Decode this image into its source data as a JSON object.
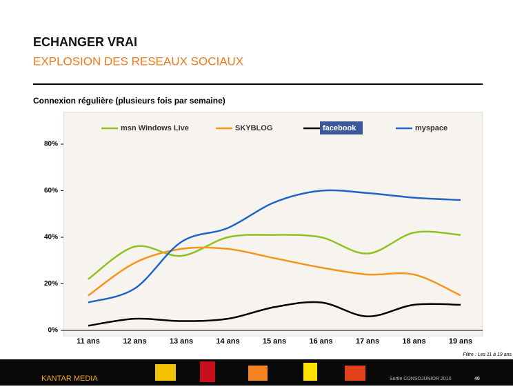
{
  "slide": {
    "title": "ECHANGER VRAI",
    "subtitle": "EXPLOSION DES RESEAUX SOCIAUX",
    "filter": "Filtre : Les 11 à 19 ans",
    "brand": "KANTAR MEDIA",
    "source": "Sortie CONSOJUNIOR 2010",
    "page": "40"
  },
  "chart_data": {
    "type": "line",
    "title": "Connexion régulière (plusieurs fois par semaine)",
    "categories": [
      "11 ans",
      "12 ans",
      "13 ans",
      "14 ans",
      "15 ans",
      "16 ans",
      "17 ans",
      "18 ans",
      "19 ans"
    ],
    "series": [
      {
        "name": "msn Windows Live",
        "color": "#8dc21f",
        "values": [
          22,
          36,
          32,
          40,
          41,
          40,
          33,
          42,
          41
        ]
      },
      {
        "name": "SKYBLOG",
        "color": "#f7941d",
        "values": [
          15,
          29,
          35,
          35,
          31,
          27,
          24,
          24,
          15
        ]
      },
      {
        "name": "facebook",
        "color": "#000000",
        "values": [
          2,
          5,
          4,
          5,
          10,
          12,
          6,
          11,
          11
        ]
      },
      {
        "name": "myspace",
        "color": "#1e64c8",
        "values": [
          12,
          18,
          38,
          44,
          55,
          60,
          59,
          57,
          56
        ]
      }
    ],
    "ylim": [
      0,
      90
    ],
    "yticks": [
      {
        "value": 0,
        "label": "0%"
      },
      {
        "value": 20,
        "label": "20%"
      },
      {
        "value": 40,
        "label": "40%"
      },
      {
        "value": 60,
        "label": "60%"
      },
      {
        "value": 80,
        "label": "80%"
      }
    ]
  }
}
